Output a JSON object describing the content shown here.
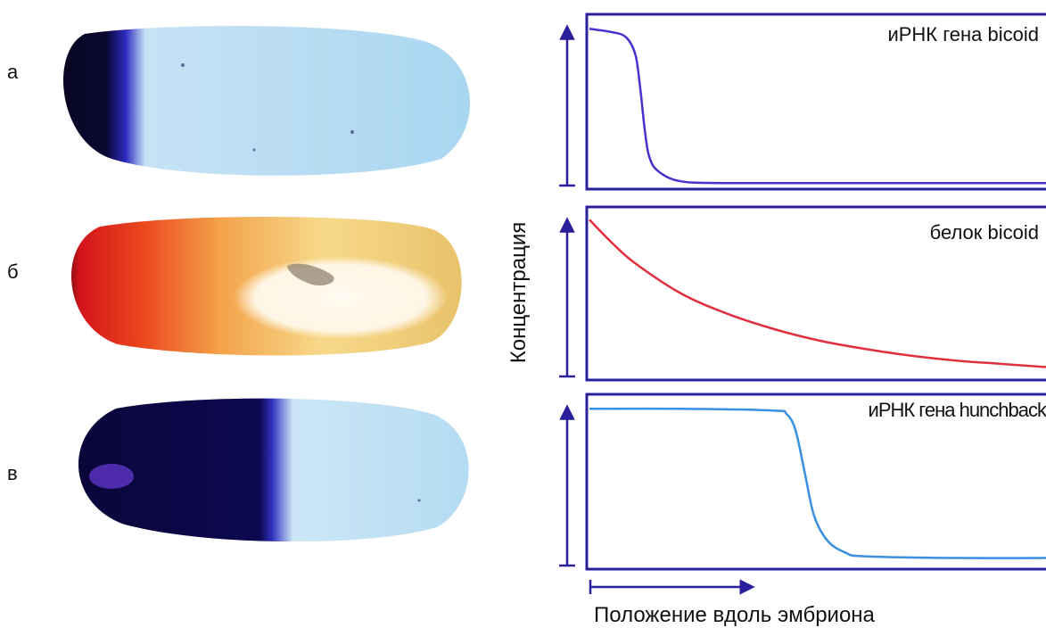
{
  "panels": [
    {
      "letter": "а",
      "embryo_fill": "dark-blue-anterior",
      "accent": "#1a1070"
    },
    {
      "letter": "б",
      "embryo_fill": "red-gradient-anterior",
      "accent": "#e8401e"
    },
    {
      "letter": "в",
      "embryo_fill": "dark-blue-anterior-half",
      "accent": "#1a1070"
    }
  ],
  "axes": {
    "ylabel": "Концентрация",
    "xlabel": "Положение вдоль эмбриона"
  },
  "chart_data": [
    {
      "type": "line",
      "title": "иРНК гена bicoid",
      "color": "#4433cc",
      "xlim": [
        0,
        1
      ],
      "ylim": [
        0,
        1
      ],
      "x": [
        0,
        0.05,
        0.08,
        0.1,
        0.11,
        0.12,
        0.13,
        0.15,
        0.2,
        0.3,
        0.5,
        0.7,
        1.0
      ],
      "y": [
        0.93,
        0.91,
        0.88,
        0.78,
        0.6,
        0.35,
        0.18,
        0.09,
        0.03,
        0.02,
        0.02,
        0.02,
        0.02
      ]
    },
    {
      "type": "line",
      "title": "белок bicoid",
      "color": "#e03040",
      "xlim": [
        0,
        1
      ],
      "ylim": [
        0,
        1
      ],
      "x": [
        0,
        0.05,
        0.1,
        0.2,
        0.3,
        0.4,
        0.5,
        0.6,
        0.7,
        0.8,
        0.9,
        1.0
      ],
      "y": [
        0.94,
        0.8,
        0.68,
        0.5,
        0.38,
        0.29,
        0.22,
        0.17,
        0.13,
        0.1,
        0.08,
        0.06
      ]
    },
    {
      "type": "line",
      "title": "иРНК гена hunchback",
      "color": "#3a8fe0",
      "xlim": [
        0,
        1
      ],
      "ylim": [
        0,
        1
      ],
      "x": [
        0,
        0.2,
        0.4,
        0.43,
        0.45,
        0.47,
        0.49,
        0.52,
        0.56,
        0.6,
        0.8,
        1.0
      ],
      "y": [
        0.93,
        0.93,
        0.92,
        0.9,
        0.8,
        0.55,
        0.3,
        0.15,
        0.08,
        0.06,
        0.05,
        0.05
      ]
    }
  ]
}
